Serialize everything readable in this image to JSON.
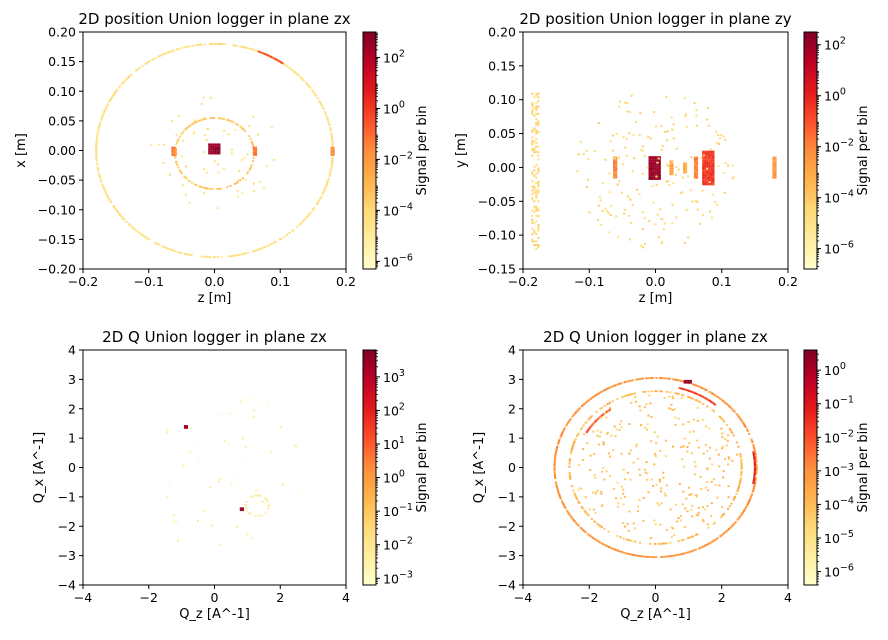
{
  "figure": {
    "width": 888,
    "height": 640
  },
  "chart_data": [
    {
      "type": "heatmap",
      "title": "2D position Union logger in plane zx",
      "xlabel": "z [m]",
      "ylabel": "x [m]",
      "xlim": [
        -0.2,
        0.2
      ],
      "ylim": [
        -0.2,
        0.2
      ],
      "xticks": [
        "−0.2",
        "−0.1",
        "0.0",
        "0.1",
        "0.2"
      ],
      "xtick_values": [
        -0.2,
        -0.1,
        0.0,
        0.1,
        0.2
      ],
      "yticks": [
        "−0.20",
        "−0.15",
        "−0.10",
        "−0.05",
        "0.00",
        "0.05",
        "0.10",
        "0.15",
        "0.20"
      ],
      "ytick_values": [
        -0.2,
        -0.15,
        -0.1,
        -0.05,
        0.0,
        0.05,
        0.1,
        0.15,
        0.2
      ],
      "colorbar": {
        "label": "Signal per bin",
        "scale": "log",
        "min_exp": -6.3,
        "max_exp": 3.0,
        "tick_exps": [
          -6,
          -4,
          -2,
          0,
          2
        ]
      },
      "features": [
        {
          "kind": "ring",
          "cx": 0,
          "cy": 0,
          "r": 0.18,
          "level": -4.5,
          "density": 0.85
        },
        {
          "kind": "ring",
          "cx": 0,
          "cy": -0.005,
          "r": 0.06,
          "level": -3.5,
          "density": 0.7
        },
        {
          "kind": "blob",
          "cx": 0,
          "cy": 0.003,
          "rx": 0.008,
          "ry": 0.008,
          "level": 2.5
        },
        {
          "kind": "arc",
          "cx": 0,
          "cy": 0,
          "r": 0.18,
          "a0": 55,
          "a1": 68,
          "level": -0.5
        },
        {
          "kind": "scatter",
          "count": 60,
          "rmax": 0.1,
          "level": -4.5
        },
        {
          "kind": "bar",
          "cx": -0.062,
          "cy": 0,
          "w": 0.004,
          "h": 0.015,
          "level": -1.2
        },
        {
          "kind": "bar",
          "cx": 0.062,
          "cy": 0,
          "w": 0.004,
          "h": 0.015,
          "level": -1.2
        },
        {
          "kind": "bar",
          "cx": 0.18,
          "cy": 0,
          "w": 0.004,
          "h": 0.015,
          "level": -1.8
        },
        {
          "kind": "bar",
          "cx": -0.06,
          "cy": -0.002,
          "w": 0.004,
          "h": 0.01,
          "level": -2.0
        }
      ]
    },
    {
      "type": "heatmap",
      "title": "2D position Union logger in plane zy",
      "xlabel": "z [m]",
      "ylabel": "y [m]",
      "xlim": [
        -0.2,
        0.2
      ],
      "ylim": [
        -0.15,
        0.2
      ],
      "xticks": [
        "−0.2",
        "−0.1",
        "0.0",
        "0.1",
        "0.2"
      ],
      "xtick_values": [
        -0.2,
        -0.1,
        0.0,
        0.1,
        0.2
      ],
      "yticks": [
        "−0.15",
        "−0.10",
        "−0.05",
        "0.00",
        "0.05",
        "0.10",
        "0.15",
        "0.20"
      ],
      "ytick_values": [
        -0.15,
        -0.1,
        -0.05,
        0.0,
        0.05,
        0.1,
        0.15,
        0.2
      ],
      "colorbar": {
        "label": "Signal per bin",
        "scale": "log",
        "min_exp": -6.8,
        "max_exp": 2.5,
        "tick_exps": [
          -6,
          -4,
          -2,
          0,
          2
        ]
      },
      "features": [
        {
          "kind": "bar",
          "cx": 0.0,
          "cy": 0.0,
          "w": 0.018,
          "h": 0.034,
          "level": 2.0
        },
        {
          "kind": "bar",
          "cx": 0.08,
          "cy": 0.0,
          "w": 0.016,
          "h": 0.05,
          "level": -0.5
        },
        {
          "kind": "bar",
          "cx": 0.062,
          "cy": 0.0,
          "w": 0.005,
          "h": 0.03,
          "level": -2.0
        },
        {
          "kind": "bar",
          "cx": -0.06,
          "cy": 0.0,
          "w": 0.005,
          "h": 0.03,
          "level": -2.0
        },
        {
          "kind": "bar",
          "cx": 0.18,
          "cy": 0.0,
          "w": 0.004,
          "h": 0.03,
          "level": -2.5
        },
        {
          "kind": "bar",
          "cx": 0.025,
          "cy": 0.0,
          "w": 0.005,
          "h": 0.02,
          "level": -3.0
        },
        {
          "kind": "bar",
          "cx": 0.045,
          "cy": 0.0,
          "w": 0.004,
          "h": 0.015,
          "level": -3.0
        },
        {
          "kind": "band",
          "cx": -0.18,
          "w": 0.012,
          "y0": -0.12,
          "y1": 0.11,
          "density": 0.3,
          "level": -4.5
        },
        {
          "kind": "scatter",
          "count": 180,
          "rmax": 0.12,
          "level": -4.5
        }
      ]
    },
    {
      "type": "heatmap",
      "title": "2D Q Union logger in plane zx",
      "xlabel": "Q_z [A^-1]",
      "ylabel": "Q_x [A^-1]",
      "xlim": [
        -4,
        4
      ],
      "ylim": [
        -4,
        4
      ],
      "xticks": [
        "−4",
        "−2",
        "0",
        "2",
        "4"
      ],
      "xtick_values": [
        -4,
        -2,
        0,
        2,
        4
      ],
      "yticks": [
        "−4",
        "−3",
        "−2",
        "−1",
        "0",
        "1",
        "2",
        "3",
        "4"
      ],
      "ytick_values": [
        -4,
        -3,
        -2,
        -1,
        0,
        1,
        2,
        3,
        4
      ],
      "colorbar": {
        "label": "Signal per bin",
        "scale": "log",
        "min_exp": -3.2,
        "max_exp": 3.8,
        "tick_exps": [
          -3,
          -2,
          -1,
          0,
          1,
          2,
          3
        ]
      },
      "features": [
        {
          "kind": "scatter",
          "count": 45,
          "rmax": 2.8,
          "level": -2.5
        },
        {
          "kind": "ring",
          "cx": 1.3,
          "cy": -1.3,
          "r": 0.35,
          "level": -2.3,
          "density": 0.5
        },
        {
          "kind": "blob",
          "cx": -0.85,
          "cy": 1.4,
          "rx": 0.05,
          "ry": 0.05,
          "level": 3.5
        },
        {
          "kind": "blob",
          "cx": 0.85,
          "cy": -1.4,
          "rx": 0.05,
          "ry": 0.05,
          "level": 3.5
        }
      ]
    },
    {
      "type": "heatmap",
      "title": "2D Q Union logger in plane zx",
      "xlabel": "Q_z [A^-1]",
      "ylabel": "Q_x [A^-1]",
      "xlim": [
        -4,
        4
      ],
      "ylim": [
        -4,
        4
      ],
      "xticks": [
        "−4",
        "−2",
        "0",
        "2",
        "4"
      ],
      "xtick_values": [
        -4,
        -2,
        0,
        2,
        4
      ],
      "yticks": [
        "−4",
        "−3",
        "−2",
        "−1",
        "0",
        "1",
        "2",
        "3",
        "4"
      ],
      "ytick_values": [
        -4,
        -3,
        -2,
        -1,
        0,
        1,
        2,
        3,
        4
      ],
      "colorbar": {
        "label": "Signal per bin",
        "scale": "log",
        "min_exp": -6.4,
        "max_exp": 0.6,
        "tick_exps": [
          -6,
          -5,
          -4,
          -3,
          -2,
          -1,
          0
        ]
      },
      "features": [
        {
          "kind": "ring",
          "cx": 0,
          "cy": 0,
          "r": 3.05,
          "level": -3.2,
          "density": 0.9
        },
        {
          "kind": "ring",
          "cx": 0,
          "cy": 0,
          "r": 2.6,
          "level": -4.0,
          "density": 0.55
        },
        {
          "kind": "arc",
          "cx": 0,
          "cy": 0,
          "r": 3.0,
          "a0": -10,
          "a1": 10,
          "level": -1.3
        },
        {
          "kind": "arc",
          "cx": 0,
          "cy": 0,
          "r": 2.4,
          "a0": 125,
          "a1": 150,
          "level": -2.2
        },
        {
          "kind": "arc",
          "cx": 0,
          "cy": 0,
          "r": 2.8,
          "a0": 50,
          "a1": 75,
          "level": -1.8
        },
        {
          "kind": "blob",
          "cx": 1.0,
          "cy": 2.95,
          "rx": 0.12,
          "ry": 0.06,
          "level": 0.3
        },
        {
          "kind": "scatter",
          "count": 260,
          "rmax": 2.5,
          "level": -4.2
        }
      ]
    }
  ]
}
